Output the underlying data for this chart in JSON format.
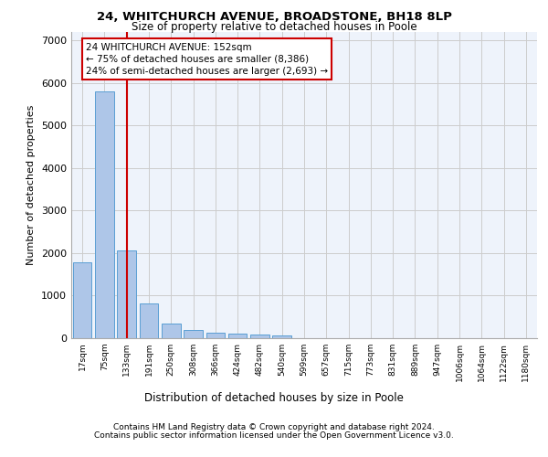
{
  "title1": "24, WHITCHURCH AVENUE, BROADSTONE, BH18 8LP",
  "title2": "Size of property relative to detached houses in Poole",
  "xlabel": "Distribution of detached houses by size in Poole",
  "ylabel": "Number of detached properties",
  "footer1": "Contains HM Land Registry data © Crown copyright and database right 2024.",
  "footer2": "Contains public sector information licensed under the Open Government Licence v3.0.",
  "bar_labels": [
    "17sqm",
    "75sqm",
    "133sqm",
    "191sqm",
    "250sqm",
    "308sqm",
    "366sqm",
    "424sqm",
    "482sqm",
    "540sqm",
    "599sqm",
    "657sqm",
    "715sqm",
    "773sqm",
    "831sqm",
    "889sqm",
    "947sqm",
    "1006sqm",
    "1064sqm",
    "1122sqm",
    "1180sqm"
  ],
  "bar_values": [
    1780,
    5800,
    2060,
    820,
    340,
    185,
    120,
    115,
    90,
    65,
    0,
    0,
    0,
    0,
    0,
    0,
    0,
    0,
    0,
    0,
    0
  ],
  "bar_color": "#aec6e8",
  "bar_edge_color": "#5a9fd4",
  "grid_color": "#cccccc",
  "bg_color": "#eef3fb",
  "annotation_text": "24 WHITCHURCH AVENUE: 152sqm\n← 75% of detached houses are smaller (8,386)\n24% of semi-detached houses are larger (2,693) →",
  "vline_x": 2.0,
  "vline_color": "#cc0000",
  "annotation_box_edge_color": "#cc0000",
  "ylim": [
    0,
    7200
  ],
  "yticks": [
    0,
    1000,
    2000,
    3000,
    4000,
    5000,
    6000,
    7000
  ]
}
